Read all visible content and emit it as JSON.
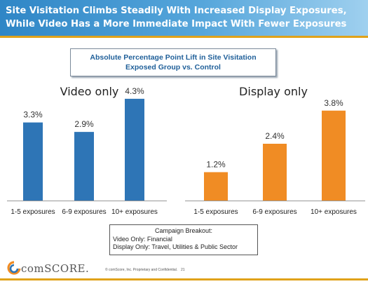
{
  "header": {
    "title": "Site Visitation Climbs Steadily With Increased Display Exposures, While Video Has a More Immediate Impact With Fewer Exposures"
  },
  "subtitle": {
    "line1": "Absolute Percentage Point Lift in Site Visitation",
    "line2": "Exposed Group vs. Control"
  },
  "chart_data": [
    {
      "type": "bar",
      "title": "Video only",
      "categories": [
        "1-5 exposures",
        "6-9 exposures",
        "10+ exposures"
      ],
      "values": [
        3.3,
        2.9,
        4.3
      ],
      "labels": [
        "3.3%",
        "2.9%",
        "4.3%"
      ],
      "color": "#2e75b6",
      "ylim": [
        0,
        4.8
      ],
      "grid": false
    },
    {
      "type": "bar",
      "title": "Display only",
      "categories": [
        "1-5 exposures",
        "6-9 exposures",
        "10+ exposures"
      ],
      "values": [
        1.2,
        2.4,
        3.8
      ],
      "labels": [
        "1.2%",
        "2.4%",
        "3.8%"
      ],
      "color": "#f08c24",
      "ylim": [
        0,
        4.8
      ],
      "grid": false
    }
  ],
  "breakdown": {
    "heading": "Campaign Breakout:",
    "video": "Video Only: Financial",
    "display": "Display Only: Travel, Utilities & Public Sector"
  },
  "footer": {
    "brand": "comSCORE.",
    "legal": "© comScore, Inc.  Proprietary and Confidential.",
    "page": "21",
    "accent_color": "#e0a21a",
    "logo_color": "#f08c24"
  }
}
